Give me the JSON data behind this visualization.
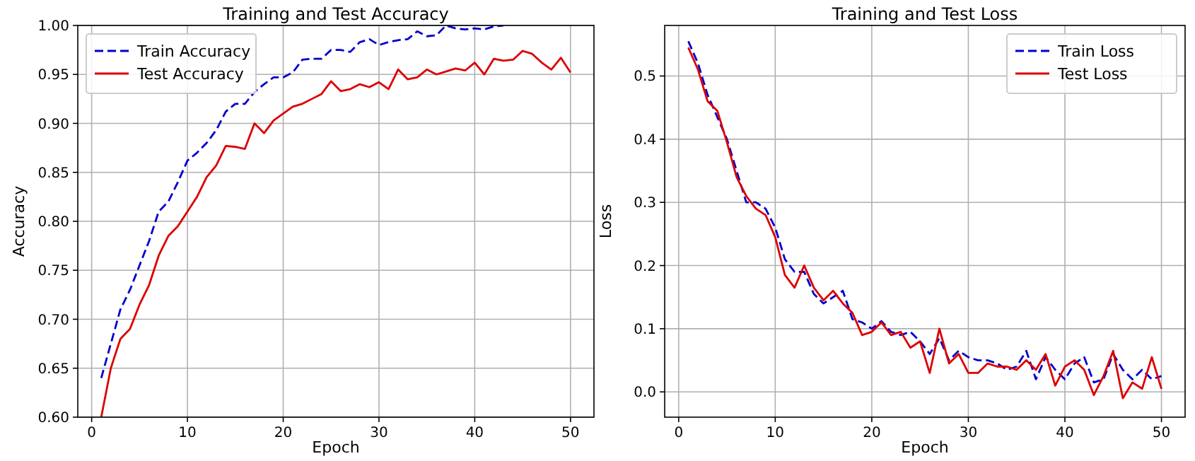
{
  "chart_data": [
    {
      "type": "line",
      "title": "Training and Test Accuracy",
      "xlabel": "Epoch",
      "ylabel": "Accuracy",
      "x": [
        1,
        2,
        3,
        4,
        5,
        6,
        7,
        8,
        9,
        10,
        11,
        12,
        13,
        14,
        15,
        16,
        17,
        18,
        19,
        20,
        21,
        22,
        23,
        24,
        25,
        26,
        27,
        28,
        29,
        30,
        31,
        32,
        33,
        34,
        35,
        36,
        37,
        38,
        39,
        40,
        41,
        42,
        43,
        44,
        45,
        46,
        47,
        48,
        49,
        50
      ],
      "series": [
        {
          "name": "Train Accuracy",
          "color": "#0000cc",
          "line_style": "dashed",
          "values": [
            0.64,
            0.675,
            0.71,
            0.73,
            0.755,
            0.78,
            0.81,
            0.82,
            0.84,
            0.862,
            0.87,
            0.88,
            0.893,
            0.912,
            0.92,
            0.92,
            0.932,
            0.94,
            0.947,
            0.947,
            0.952,
            0.965,
            0.966,
            0.966,
            0.975,
            0.975,
            0.973,
            0.983,
            0.986,
            0.98,
            0.983,
            0.985,
            0.986,
            0.994,
            0.989,
            0.99,
            1.0,
            0.997,
            0.996,
            0.997,
            0.996,
            0.999,
            1.0,
            null,
            null,
            null,
            null,
            null,
            null,
            null
          ]
        },
        {
          "name": "Test Accuracy",
          "color": "#dd0000",
          "line_style": "solid",
          "values": [
            0.6,
            0.65,
            0.68,
            0.69,
            0.715,
            0.735,
            0.765,
            0.785,
            0.795,
            0.81,
            0.825,
            0.845,
            0.857,
            0.877,
            0.876,
            0.874,
            0.9,
            0.89,
            0.903,
            0.91,
            0.917,
            0.92,
            0.925,
            0.93,
            0.943,
            0.933,
            0.935,
            0.94,
            0.937,
            0.942,
            0.935,
            0.955,
            0.945,
            0.947,
            0.955,
            0.95,
            0.953,
            0.956,
            0.954,
            0.962,
            0.95,
            0.966,
            0.964,
            0.965,
            0.974,
            0.971,
            0.962,
            0.955,
            0.967,
            0.952
          ]
        }
      ],
      "xlim": [
        -1.45,
        52.45
      ],
      "xticks": [
        0,
        10,
        20,
        30,
        40,
        50
      ],
      "ylim": [
        0.6,
        1.0
      ],
      "yticks": [
        {
          "value": 0.6,
          "label": "0.60"
        },
        {
          "value": 0.65,
          "label": "0.65"
        },
        {
          "value": 0.7,
          "label": "0.70"
        },
        {
          "value": 0.75,
          "label": "0.75"
        },
        {
          "value": 0.8,
          "label": "0.80"
        },
        {
          "value": 0.85,
          "label": "0.85"
        },
        {
          "value": 0.9,
          "label": "0.90"
        },
        {
          "value": 0.95,
          "label": "0.95"
        },
        {
          "value": 1.0,
          "label": "1.00"
        }
      ],
      "grid": true,
      "legend": "top left",
      "marker": "none"
    },
    {
      "type": "line",
      "title": "Training and Test Loss",
      "xlabel": "Epoch",
      "ylabel": "Loss",
      "x": [
        1,
        2,
        3,
        4,
        5,
        6,
        7,
        8,
        9,
        10,
        11,
        12,
        13,
        14,
        15,
        16,
        17,
        18,
        19,
        20,
        21,
        22,
        23,
        24,
        25,
        26,
        27,
        28,
        29,
        30,
        31,
        32,
        33,
        34,
        35,
        36,
        37,
        38,
        39,
        40,
        41,
        42,
        43,
        44,
        45,
        46,
        47,
        48,
        49,
        50
      ],
      "series": [
        {
          "name": "Train Loss",
          "color": "#0000cc",
          "line_style": "dashed",
          "values": [
            0.555,
            0.52,
            0.47,
            0.435,
            0.4,
            0.35,
            0.3,
            0.3,
            0.29,
            0.26,
            0.21,
            0.19,
            0.19,
            0.155,
            0.14,
            0.15,
            0.16,
            0.115,
            0.11,
            0.1,
            0.112,
            0.095,
            0.09,
            0.095,
            0.08,
            0.06,
            0.085,
            0.05,
            0.065,
            0.055,
            0.05,
            0.05,
            0.045,
            0.035,
            0.04,
            0.065,
            0.02,
            0.055,
            0.035,
            0.02,
            0.045,
            0.055,
            0.015,
            0.02,
            0.06,
            0.035,
            0.02,
            0.035,
            0.02,
            0.025
          ]
        },
        {
          "name": "Test Loss",
          "color": "#dd0000",
          "line_style": "solid",
          "values": [
            0.545,
            0.51,
            0.46,
            0.445,
            0.395,
            0.34,
            0.31,
            0.29,
            0.28,
            0.245,
            0.185,
            0.165,
            0.2,
            0.165,
            0.145,
            0.16,
            0.14,
            0.125,
            0.09,
            0.095,
            0.11,
            0.09,
            0.095,
            0.07,
            0.08,
            0.03,
            0.1,
            0.045,
            0.06,
            0.03,
            0.03,
            0.045,
            0.04,
            0.04,
            0.035,
            0.05,
            0.035,
            0.06,
            0.01,
            0.04,
            0.05,
            0.035,
            -0.005,
            0.025,
            0.065,
            -0.01,
            0.015,
            0.005,
            0.055,
            0.005
          ]
        }
      ],
      "xlim": [
        -1.45,
        52.45
      ],
      "xticks": [
        0,
        10,
        20,
        30,
        40,
        50
      ],
      "ylim": [
        -0.04,
        0.58
      ],
      "yticks": [
        {
          "value": 0,
          "label": "0.0"
        },
        {
          "value": 0.1,
          "label": "0.1"
        },
        {
          "value": 0.2,
          "label": "0.2"
        },
        {
          "value": 0.3,
          "label": "0.3"
        },
        {
          "value": 0.4,
          "label": "0.4"
        },
        {
          "value": 0.5,
          "label": "0.5"
        }
      ],
      "grid": true,
      "legend": "top right",
      "marker": "none"
    }
  ]
}
